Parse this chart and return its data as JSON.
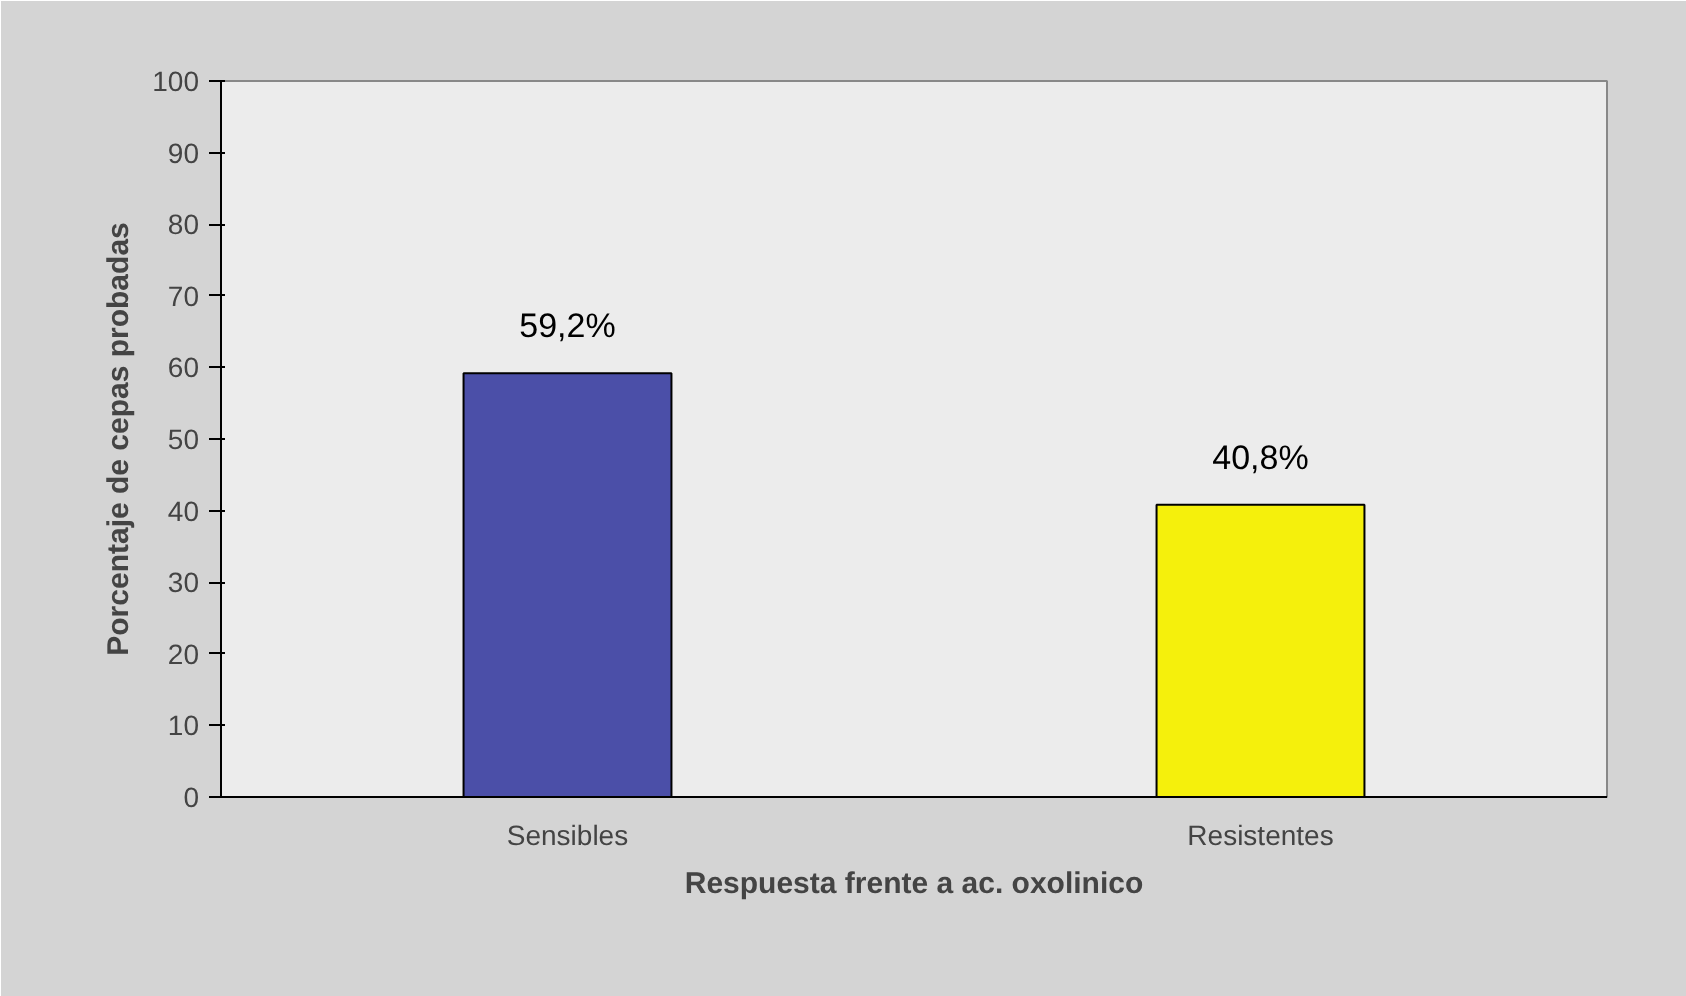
{
  "chart_data": {
    "type": "bar",
    "categories": [
      "Sensibles",
      "Resistentes"
    ],
    "values": [
      59.2,
      40.8
    ],
    "colors": [
      "#4b4fa8",
      "#f5f00c"
    ],
    "value_labels": [
      "59,2%",
      "40,8%"
    ],
    "xlabel": "Respuesta frente a ac. oxolinico",
    "ylabel": "Porcentaje de cepas probadas",
    "ylim": [
      0,
      100
    ],
    "yticks": [
      0,
      10,
      20,
      30,
      40,
      50,
      60,
      70,
      80,
      90,
      100
    ],
    "grid": false
  }
}
